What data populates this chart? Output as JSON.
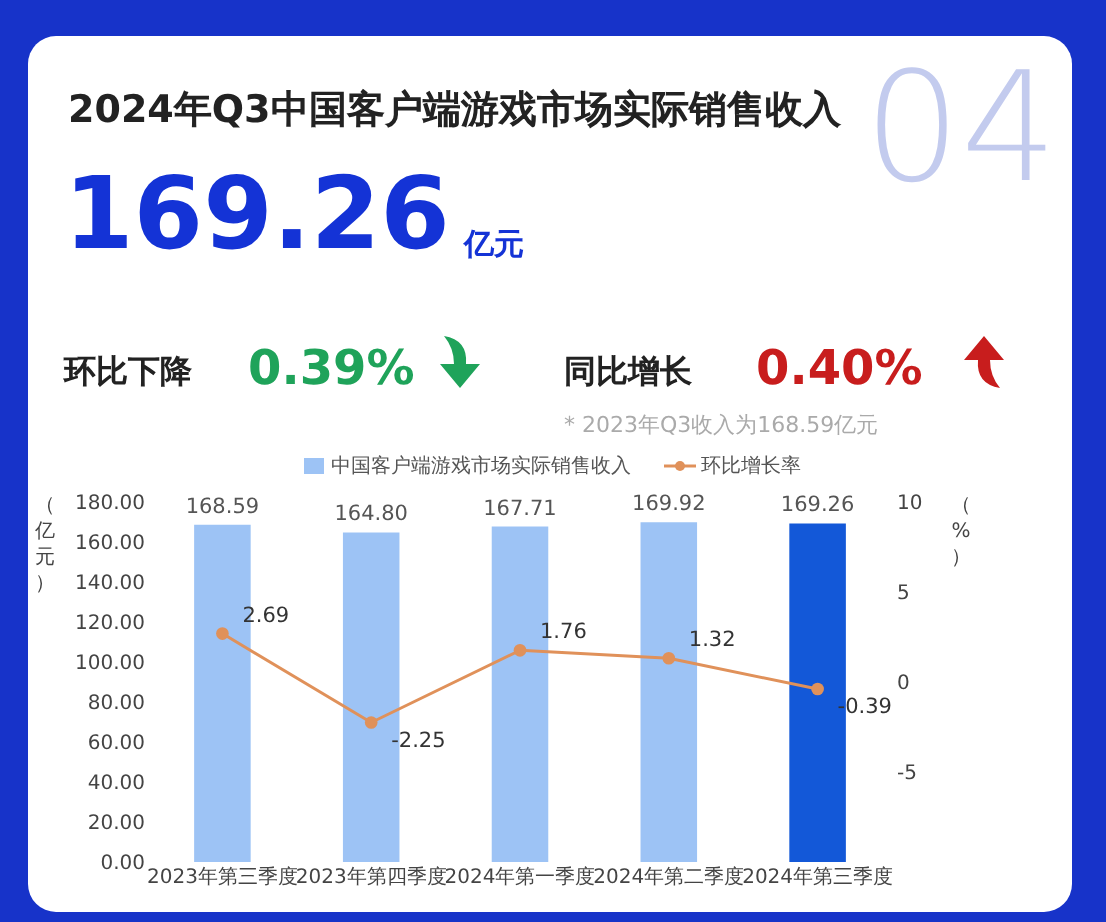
{
  "chart_data": {
    "type": "bar",
    "title": "2024年Q3中国客户端游戏市场实际销售收入",
    "annotations": [
      "04",
      "169.26",
      "亿元",
      "环比下降",
      "0.39%",
      "同比增长",
      "0.40%",
      "* 2023年Q3收入为168.59亿元"
    ],
    "categories": [
      "2023年第三季度",
      "2023年第四季度",
      "2024年第一季度",
      "2024年第二季度",
      "2024年第三季度"
    ],
    "series": [
      {
        "name": "中国客户端游戏市场实际销售收入",
        "color": "#9dc3f5",
        "colors": [
          "#9dc3f5",
          "#9dc3f5",
          "#9dc3f5",
          "#9dc3f5",
          "#1358d8"
        ],
        "values": [
          168.59,
          164.8,
          167.71,
          169.92,
          169.26
        ],
        "value_labels": [
          "168.59",
          "164.80",
          "167.71",
          "169.92",
          "169.26"
        ]
      },
      {
        "name": "环比增长率",
        "type": "line",
        "axis": "y2",
        "color": "#e0915a",
        "values": [
          2.69,
          -2.25,
          1.76,
          1.32,
          -0.39
        ],
        "value_labels": [
          "2.69",
          "-2.25",
          "1.76",
          "1.32",
          "-0.39"
        ]
      }
    ],
    "ylabel": "（亿元）",
    "y2label": "（%）",
    "ylim": [
      0,
      180
    ],
    "yticks": [
      {
        "value": 0,
        "label": "0.00"
      },
      {
        "value": 20,
        "label": "20.00"
      },
      {
        "value": 40,
        "label": "40.00"
      },
      {
        "value": 60,
        "label": "60.00"
      },
      {
        "value": 80,
        "label": "80.00"
      },
      {
        "value": 100,
        "label": "100.00"
      },
      {
        "value": 120,
        "label": "120.00"
      },
      {
        "value": 140,
        "label": "140.00"
      },
      {
        "value": 160,
        "label": "160.00"
      },
      {
        "value": 180,
        "label": "180.00"
      }
    ],
    "y2lim": [
      -10,
      10
    ],
    "y2ticks": [
      -5,
      0,
      5,
      10
    ],
    "legend": "top",
    "marker": "circle",
    "line_style": "solid",
    "grid": false
  }
}
